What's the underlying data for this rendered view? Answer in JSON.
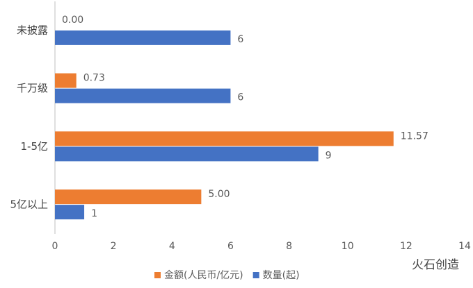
{
  "chart_data": {
    "type": "hbar",
    "categories": [
      "未披露",
      "千万级",
      "1-5亿",
      "5亿以上"
    ],
    "series": [
      {
        "name": "金额(人民币/亿元)",
        "color": "#ed7d31",
        "values": [
          0.0,
          0.73,
          11.57,
          5.0
        ],
        "value_labels": [
          "0.00",
          "0.73",
          "11.57",
          "5.00"
        ]
      },
      {
        "name": "数量(起)",
        "color": "#4472c4",
        "values": [
          6,
          6,
          9,
          1
        ]
      }
    ],
    "xlim": [
      0,
      14
    ],
    "xticks": [
      0,
      2,
      4,
      6,
      8,
      10,
      12,
      14
    ],
    "grid": false,
    "legend": "bottom"
  },
  "watermark": "火石创造"
}
